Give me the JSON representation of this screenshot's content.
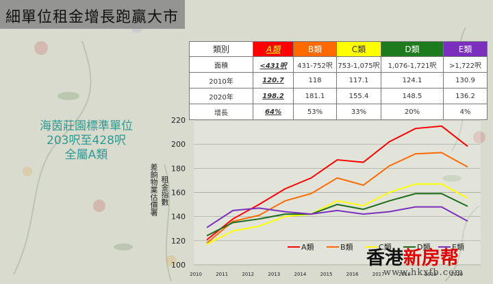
{
  "title": "細單位租金增長跑贏大市",
  "table": {
    "headers": [
      "類別",
      "A類",
      "B類",
      "C類",
      "D類",
      "E類"
    ],
    "rows": [
      [
        "面積",
        "<431呎",
        "431-752呎",
        "753-1,075呎",
        "1,076-1,721呎",
        ">1,722呎"
      ],
      [
        "2010年",
        "120.7",
        "118",
        "117.1",
        "124.1",
        "130.9"
      ],
      [
        "2020年",
        "198.2",
        "181.1",
        "155.4",
        "148.5",
        "136.2"
      ],
      [
        "增長",
        "64%",
        "53%",
        "33%",
        "20%",
        "4%"
      ]
    ]
  },
  "side_note": {
    "line1": "海茵莊園標準單位",
    "line2": "203呎至428呎",
    "line3": "全屬A類"
  },
  "ylabel_left": "差餉物業估價署",
  "ylabel_right": "租金指數",
  "watermark": {
    "part1": "香港",
    "part2": "新房帮",
    "url": "www.hkxfb.com"
  },
  "colors": {
    "A": "#ff0000",
    "B": "#ff6a00",
    "C": "#ffff00",
    "D": "#1d6b1d",
    "E": "#7b2fbf"
  },
  "chart_data": {
    "type": "line",
    "x": [
      "2010",
      "2011",
      "2012",
      "2013",
      "2014",
      "2015",
      "2016",
      "2017",
      "2018",
      "2019",
      "2020"
    ],
    "ylim": [
      100,
      220
    ],
    "yticks": [
      100,
      120,
      140,
      160,
      180,
      200,
      220
    ],
    "series": [
      {
        "name": "A類",
        "values": [
          120.7,
          138,
          150,
          163,
          172,
          187,
          185,
          202,
          213,
          215,
          198.2
        ]
      },
      {
        "name": "B類",
        "values": [
          118,
          136,
          141,
          153,
          159,
          172,
          166,
          182,
          192,
          193,
          181.1
        ]
      },
      {
        "name": "C類",
        "values": [
          117.1,
          128,
          132,
          140,
          142,
          153,
          149,
          160,
          167,
          167,
          155.4
        ]
      },
      {
        "name": "D類",
        "values": [
          124.1,
          135,
          138,
          142,
          142,
          150,
          146,
          153,
          159,
          159,
          148.5
        ]
      },
      {
        "name": "E類",
        "values": [
          130.9,
          145,
          147,
          144,
          142,
          145,
          142,
          144,
          148,
          148,
          136.2
        ]
      }
    ],
    "legend": "bottom"
  }
}
